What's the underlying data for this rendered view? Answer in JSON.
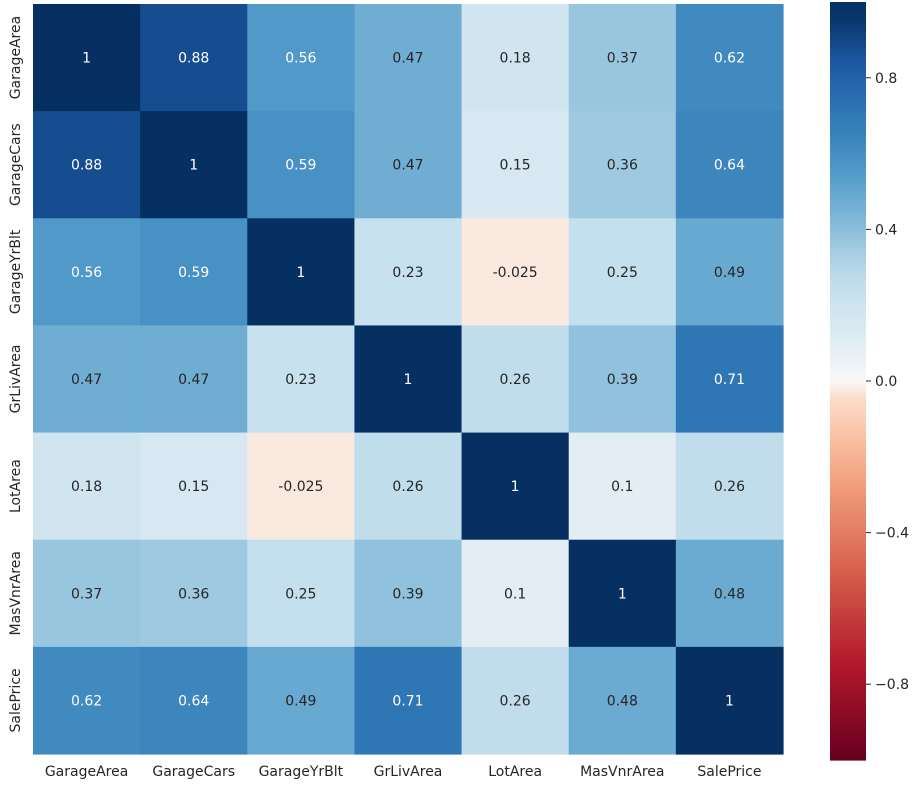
{
  "chart_data": {
    "type": "heatmap",
    "variables": [
      "GarageArea",
      "GarageCars",
      "GarageYrBlt",
      "GrLivArea",
      "LotArea",
      "MasVnrArea",
      "SalePrice"
    ],
    "matrix": [
      [
        1,
        0.88,
        0.56,
        0.47,
        0.18,
        0.37,
        0.62
      ],
      [
        0.88,
        1,
        0.59,
        0.47,
        0.15,
        0.36,
        0.64
      ],
      [
        0.56,
        0.59,
        1,
        0.23,
        -0.025,
        0.25,
        0.49
      ],
      [
        0.47,
        0.47,
        0.23,
        1,
        0.26,
        0.39,
        0.71
      ],
      [
        0.18,
        0.15,
        -0.025,
        0.26,
        1,
        0.1,
        0.26
      ],
      [
        0.37,
        0.36,
        0.25,
        0.39,
        0.1,
        1,
        0.48
      ],
      [
        0.62,
        0.64,
        0.49,
        0.71,
        0.26,
        0.48,
        1
      ]
    ],
    "annotations": [
      [
        "1",
        "0.88",
        "0.56",
        "0.47",
        "0.18",
        "0.37",
        "0.62"
      ],
      [
        "0.88",
        "1",
        "0.59",
        "0.47",
        "0.15",
        "0.36",
        "0.64"
      ],
      [
        "0.56",
        "0.59",
        "1",
        "0.23",
        "-0.025",
        "0.25",
        "0.49"
      ],
      [
        "0.47",
        "0.47",
        "0.23",
        "1",
        "0.26",
        "0.39",
        "0.71"
      ],
      [
        "0.18",
        "0.15",
        "-0.025",
        "0.26",
        "1",
        "0.1",
        "0.26"
      ],
      [
        "0.37",
        "0.36",
        "0.25",
        "0.39",
        "0.1",
        "1",
        "0.48"
      ],
      [
        "0.62",
        "0.64",
        "0.49",
        "0.71",
        "0.26",
        "0.48",
        "1"
      ]
    ],
    "colormap": "RdBu",
    "vmin": -1,
    "vmax": 1,
    "colorbar_ticks": [
      0.8,
      0.4,
      0.0,
      -0.4,
      -0.8
    ],
    "colorbar_tick_labels": [
      "0.8",
      "0.4",
      "0.0",
      "−0.4",
      "−0.8"
    ],
    "grid": false,
    "legend": "colorbar-right"
  }
}
